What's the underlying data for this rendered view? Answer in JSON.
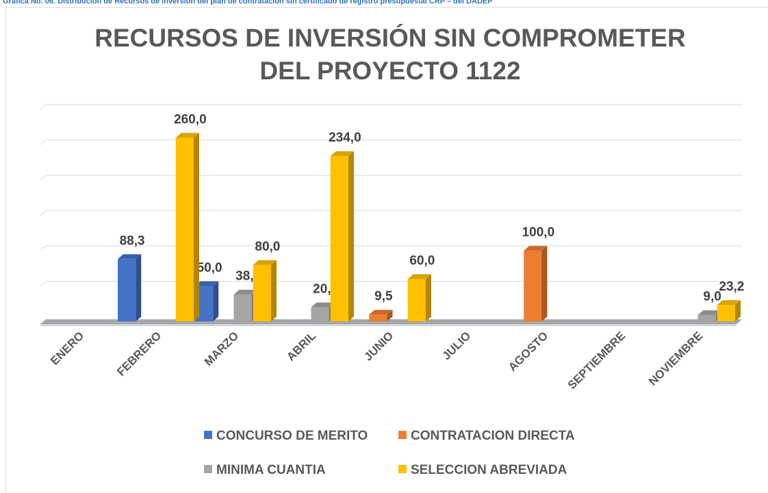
{
  "caption": "Gráfica No. 06. Distribución de Recursos de inversión del plan de contratación sin certificado de registro presupuestal CRP – del DADEP",
  "chart_data": {
    "type": "bar3d",
    "title": "RECURSOS DE INVERSIÓN SIN COMPROMETER DEL PROYECTO 1122",
    "categories": [
      "ENERO",
      "FEBRERO",
      "MARZO",
      "ABRIL",
      "JUNIO",
      "JULIO",
      "AGOSTO",
      "SEPTIEMBRE",
      "NOVIEMBRE"
    ],
    "series": [
      {
        "name": "CONCURSO DE MERITO",
        "color": "#4472c4",
        "values": [
          null,
          88.3,
          50.0,
          null,
          null,
          null,
          null,
          null,
          null
        ],
        "value_labels": [
          null,
          "88,3",
          "50,0",
          null,
          null,
          null,
          null,
          null,
          null
        ]
      },
      {
        "name": "CONTRATACION DIRECTA",
        "color": "#ed7d31",
        "values": [
          null,
          null,
          null,
          null,
          9.5,
          null,
          100.0,
          null,
          null
        ],
        "value_labels": [
          null,
          null,
          null,
          null,
          "9,5",
          null,
          "100,0",
          null,
          null
        ]
      },
      {
        "name": "MINIMA CUANTIA",
        "color": "#a5a5a5",
        "values": [
          null,
          null,
          38.0,
          20.0,
          null,
          null,
          null,
          null,
          9.0
        ],
        "value_labels": [
          null,
          null,
          "38,0",
          "20,0",
          null,
          null,
          null,
          null,
          "9,0"
        ]
      },
      {
        "name": "SELECCION ABREVIADA",
        "color": "#ffc000",
        "values": [
          null,
          260.0,
          80.0,
          234.0,
          60.0,
          null,
          null,
          null,
          23.2
        ],
        "value_labels": [
          null,
          "260,0",
          "80,0",
          "234,0",
          "60,0",
          null,
          null,
          null,
          "23,2"
        ]
      }
    ],
    "ylim": [
      0,
      300
    ],
    "yticks": [
      0,
      50,
      100,
      150,
      200,
      250,
      300
    ],
    "grid": true,
    "legend": "bottom"
  }
}
